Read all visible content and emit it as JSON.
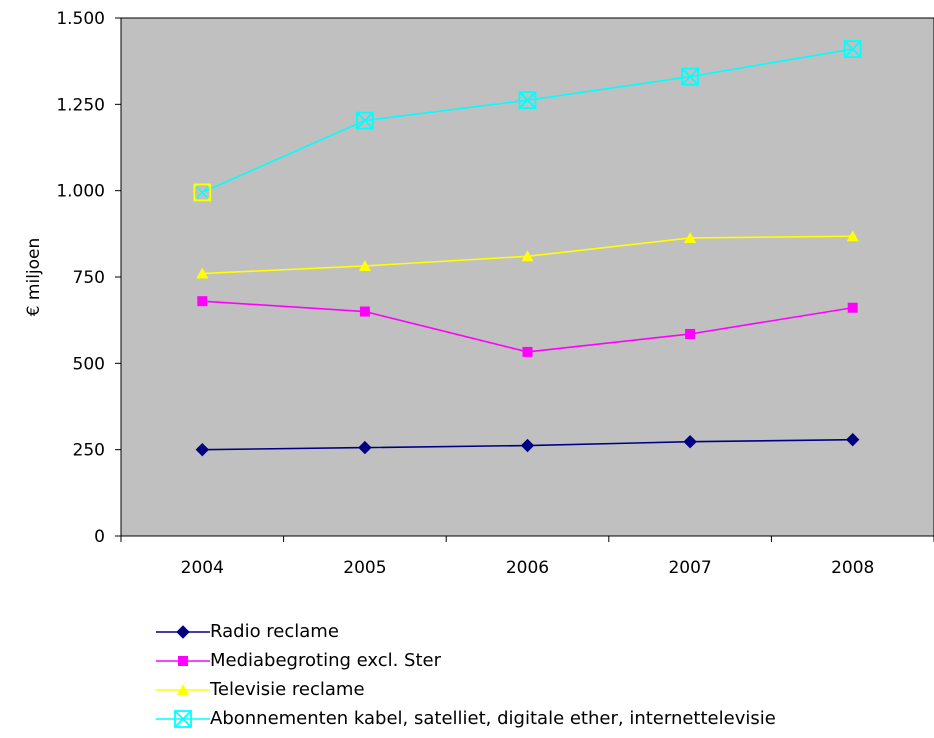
{
  "chart_data": {
    "type": "line",
    "ylabel": "€ miljoen",
    "xlabel": "",
    "ylim": [
      0,
      1500
    ],
    "yticks": [
      0,
      250,
      500,
      750,
      1000,
      1250,
      1500
    ],
    "ytick_labels": [
      "0",
      "250",
      "500",
      "750",
      "1.000",
      "1.250",
      "1.500"
    ],
    "categories": [
      "2004",
      "2005",
      "2006",
      "2007",
      "2008"
    ],
    "grid": false,
    "plot_background": "#c0c0c0",
    "legend_position": "bottom",
    "series": [
      {
        "name": "Radio reclame",
        "color": "#000080",
        "marker": "diamond",
        "values": [
          250,
          256,
          262,
          273,
          279
        ]
      },
      {
        "name": "Mediabegroting excl. Ster",
        "color": "#ff00ff",
        "marker": "square",
        "values": [
          680,
          650,
          533,
          585,
          661
        ]
      },
      {
        "name": "Televisie reclame",
        "color": "#ffff00",
        "marker": "triangle",
        "values": [
          760,
          782,
          810,
          863,
          868
        ]
      },
      {
        "name": "Abonnementen kabel, satelliet, digitale ether, internettelevisie",
        "color": "#00ffff",
        "marker": "crossed-square",
        "values": [
          995,
          1203,
          1262,
          1330,
          1410
        ]
      }
    ]
  }
}
